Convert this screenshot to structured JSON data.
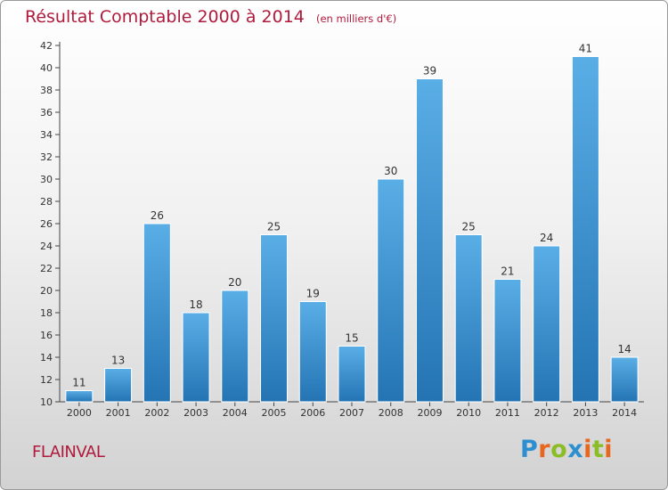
{
  "title": "Résultat Comptable 2000 à 2014",
  "subtitle": "(en milliers d'€)",
  "commune": "FLAINVAL",
  "logo": {
    "letters": [
      {
        "ch": "P",
        "color": "#2e8fd0"
      },
      {
        "ch": "r",
        "color": "#e8661e"
      },
      {
        "ch": "o",
        "color": "#8cbd27"
      },
      {
        "ch": "x",
        "color": "#2e8fd0"
      },
      {
        "ch": "i",
        "color": "#e8661e"
      },
      {
        "ch": "t",
        "color": "#8cbd27"
      },
      {
        "ch": "i",
        "color": "#e8661e"
      }
    ]
  },
  "colors": {
    "title": "#b01a3c",
    "bar_light": "#5aaee6",
    "bar_dark": "#2474b4"
  },
  "chart_data": {
    "type": "bar",
    "title": "Résultat Comptable 2000 à 2014",
    "ylabel": "(en milliers d'€)",
    "xlabel": "",
    "categories": [
      "2000",
      "2001",
      "2002",
      "2003",
      "2004",
      "2005",
      "2006",
      "2007",
      "2008",
      "2009",
      "2010",
      "2011",
      "2012",
      "2013",
      "2014"
    ],
    "values": [
      11,
      13,
      26,
      18,
      20,
      25,
      19,
      15,
      30,
      39,
      25,
      21,
      24,
      41,
      14
    ],
    "ylim": [
      10,
      42
    ],
    "yticks": [
      10,
      12,
      14,
      16,
      18,
      20,
      22,
      24,
      26,
      28,
      30,
      32,
      34,
      36,
      38,
      40,
      42
    ],
    "grid": false,
    "legend": "none"
  }
}
